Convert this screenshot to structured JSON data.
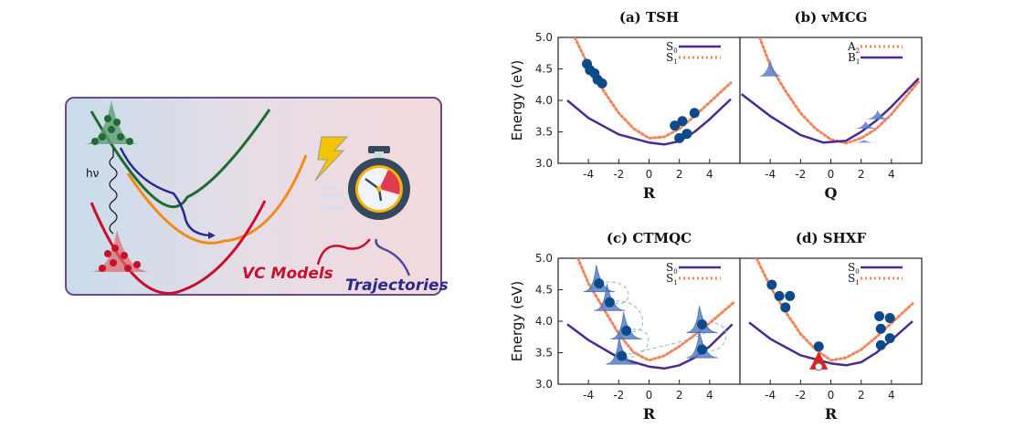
{
  "illustration": {
    "photon_label": "hν",
    "models_label": "VC Models",
    "trajectories_label": "Trajectories",
    "colors": {
      "green": "#1e6b34",
      "orange": "#f28a1a",
      "red": "#c8102e",
      "blue": "#2a2a8c",
      "frame": "#6b4a8a"
    }
  },
  "chart_data": [
    {
      "type": "line",
      "title": "(a) TSH",
      "xlabel": "R",
      "ylabel": "Energy (eV)",
      "xlim": [
        -6,
        6
      ],
      "ylim": [
        3.0,
        5.0
      ],
      "xticks": [
        "-4",
        "-2",
        "0",
        "2",
        "4"
      ],
      "yticks": [
        "3.0",
        "3.5",
        "4.0",
        "4.5",
        "5.0"
      ],
      "legend_position": "top-right",
      "series": [
        {
          "name": {
            "main": "S",
            "sub": "0"
          },
          "style": "solid",
          "color": "#4b2a8f",
          "points": [
            [
              -5.4,
              4.0
            ],
            [
              -4,
              3.72
            ],
            [
              -2,
              3.46
            ],
            [
              0,
              3.33
            ],
            [
              1,
              3.3
            ],
            [
              2,
              3.35
            ],
            [
              3,
              3.5
            ],
            [
              4,
              3.7
            ],
            [
              5.4,
              4.02
            ]
          ]
        },
        {
          "name": {
            "main": "S",
            "sub": "1"
          },
          "style": "dotted",
          "color": "#f5845a",
          "points": [
            [
              -4.9,
              5.0
            ],
            [
              -4,
              4.55
            ],
            [
              -3,
              4.15
            ],
            [
              -2,
              3.8
            ],
            [
              -1,
              3.55
            ],
            [
              0,
              3.4
            ],
            [
              1,
              3.42
            ],
            [
              2,
              3.55
            ],
            [
              3,
              3.75
            ],
            [
              4,
              3.97
            ],
            [
              5.4,
              4.28
            ]
          ]
        }
      ],
      "markers": {
        "kind": "dots",
        "color": "#0d4a8a",
        "points": [
          [
            -4.1,
            4.58
          ],
          [
            -3.9,
            4.48
          ],
          [
            -3.6,
            4.43
          ],
          [
            -3.4,
            4.33
          ],
          [
            -3.1,
            4.27
          ],
          [
            1.7,
            3.6
          ],
          [
            2.2,
            3.67
          ],
          [
            3.0,
            3.8
          ],
          [
            2.0,
            3.4
          ],
          [
            2.5,
            3.47
          ]
        ]
      }
    },
    {
      "type": "line",
      "title": "(b) vMCG",
      "xlabel": "Q",
      "ylabel": "",
      "xlim": [
        -6,
        6
      ],
      "ylim": [
        3.0,
        5.0
      ],
      "xticks": [
        "-4",
        "-2",
        "0",
        "2",
        "4"
      ],
      "yticks": [],
      "legend_position": "top-right",
      "series": [
        {
          "name": {
            "main": "A",
            "sub": "2"
          },
          "style": "dotted",
          "color": "#f5845a",
          "points": [
            [
              -4.7,
              5.0
            ],
            [
              -4,
              4.55
            ],
            [
              -3,
              4.15
            ],
            [
              -2,
              3.8
            ],
            [
              -1,
              3.55
            ],
            [
              0,
              3.38
            ],
            [
              1,
              3.32
            ],
            [
              2,
              3.4
            ],
            [
              3,
              3.55
            ],
            [
              4,
              3.78
            ],
            [
              5.8,
              4.3
            ]
          ]
        },
        {
          "name": {
            "main": "B",
            "sub": "1"
          },
          "style": "solid",
          "color": "#4b2a8f",
          "points": [
            [
              -5.9,
              4.1
            ],
            [
              -4,
              3.75
            ],
            [
              -2,
              3.45
            ],
            [
              -0.5,
              3.33
            ],
            [
              1,
              3.36
            ],
            [
              2,
              3.5
            ],
            [
              3,
              3.68
            ],
            [
              4,
              3.9
            ],
            [
              5.8,
              4.35
            ]
          ]
        }
      ],
      "markers": {
        "kind": "gaussians",
        "color": "#5b7fc4",
        "points": [
          [
            -4,
            4.38,
            0.28
          ],
          [
            2.3,
            3.55,
            0.12
          ],
          [
            3.1,
            3.7,
            0.15
          ],
          [
            2.2,
            3.33,
            0.04
          ]
        ]
      }
    },
    {
      "type": "line",
      "title": "(c) CTMQC",
      "xlabel": "R",
      "ylabel": "Energy (eV)",
      "xlim": [
        -6,
        6
      ],
      "ylim": [
        3.0,
        5.0
      ],
      "xticks": [
        "-4",
        "-2",
        "0",
        "2",
        "4"
      ],
      "yticks": [
        "3.0",
        "3.5",
        "4.0",
        "4.5",
        "5.0"
      ],
      "legend_position": "top-right",
      "series": [
        {
          "name": {
            "main": "S",
            "sub": "0"
          },
          "style": "solid",
          "color": "#4b2a8f",
          "points": [
            [
              -5.4,
              3.95
            ],
            [
              -4,
              3.7
            ],
            [
              -2,
              3.42
            ],
            [
              0,
              3.28
            ],
            [
              1,
              3.25
            ],
            [
              2,
              3.3
            ],
            [
              3,
              3.42
            ],
            [
              4,
              3.6
            ],
            [
              5.5,
              3.95
            ]
          ]
        },
        {
          "name": {
            "main": "S",
            "sub": "1"
          },
          "style": "dotted",
          "color": "#f5845a",
          "points": [
            [
              -4.7,
              5.0
            ],
            [
              -4,
              4.6
            ],
            [
              -3,
              4.2
            ],
            [
              -2,
              3.8
            ],
            [
              -1,
              3.5
            ],
            [
              0,
              3.38
            ],
            [
              1,
              3.45
            ],
            [
              2,
              3.6
            ],
            [
              3,
              3.78
            ],
            [
              4,
              3.97
            ],
            [
              5.6,
              4.3
            ]
          ]
        }
      ],
      "markers": {
        "kind": "gaussian-dots",
        "color": "#5b7fc4",
        "points": [
          [
            -3.3,
            4.6
          ],
          [
            -2.6,
            4.3
          ],
          [
            -1.5,
            3.85
          ],
          [
            -1.8,
            3.45
          ],
          [
            3.5,
            3.95
          ],
          [
            3.5,
            3.55
          ]
        ]
      }
    },
    {
      "type": "line",
      "title": "(d) SHXF",
      "xlabel": "R",
      "ylabel": "",
      "xlim": [
        -6,
        6
      ],
      "ylim": [
        3.0,
        5.0
      ],
      "xticks": [
        "-4",
        "-2",
        "0",
        "2",
        "4"
      ],
      "yticks": [],
      "legend_position": "top-right",
      "series": [
        {
          "name": {
            "main": "S",
            "sub": "0"
          },
          "style": "solid",
          "color": "#4b2a8f",
          "points": [
            [
              -5.4,
              3.98
            ],
            [
              -4,
              3.72
            ],
            [
              -2,
              3.46
            ],
            [
              0,
              3.33
            ],
            [
              1,
              3.3
            ],
            [
              2,
              3.35
            ],
            [
              3,
              3.5
            ],
            [
              4,
              3.7
            ],
            [
              5.4,
              4.0
            ]
          ]
        },
        {
          "name": {
            "main": "S",
            "sub": "1"
          },
          "style": "dotted",
          "color": "#f5845a",
          "points": [
            [
              -4.9,
              5.0
            ],
            [
              -4,
              4.55
            ],
            [
              -3,
              4.15
            ],
            [
              -2,
              3.8
            ],
            [
              -1,
              3.55
            ],
            [
              0,
              3.38
            ],
            [
              1,
              3.42
            ],
            [
              2,
              3.55
            ],
            [
              3,
              3.75
            ],
            [
              4,
              3.97
            ],
            [
              5.4,
              4.28
            ]
          ]
        }
      ],
      "markers": {
        "kind": "dots",
        "color": "#0d4a8a",
        "points": [
          [
            -3.9,
            4.58
          ],
          [
            -3.4,
            4.4
          ],
          [
            -2.7,
            4.4
          ],
          [
            -3.0,
            4.22
          ],
          [
            -0.8,
            3.6
          ],
          [
            3.2,
            4.08
          ],
          [
            3.9,
            4.05
          ],
          [
            3.3,
            3.88
          ],
          [
            3.9,
            3.73
          ],
          [
            3.3,
            3.62
          ]
        ],
        "highlight": {
          "kind": "red-triangle",
          "color": "#e02020",
          "point": [
            -0.8,
            3.35
          ]
        }
      }
    }
  ]
}
